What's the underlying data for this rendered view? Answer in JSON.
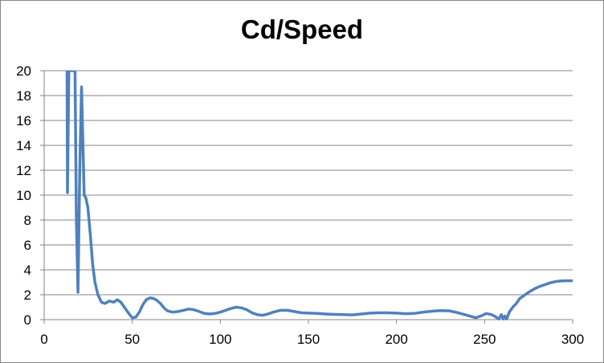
{
  "chart_data": {
    "type": "line",
    "title": "Cd/Speed",
    "xlabel": "",
    "ylabel": "",
    "xlim": [
      0,
      300
    ],
    "ylim": [
      0,
      20
    ],
    "x_ticks": [
      "0",
      "50",
      "100",
      "150",
      "200",
      "250",
      "300"
    ],
    "y_ticks": [
      "0",
      "2",
      "4",
      "6",
      "8",
      "10",
      "12",
      "14",
      "16",
      "18",
      "20"
    ],
    "grid": "horizontal",
    "legend": "none",
    "line_color": "#4f81bd",
    "series": [
      {
        "x": [
          13,
          13.2,
          14,
          17.5,
          18.3,
          19.2,
          20.2,
          21.2,
          22,
          22.7,
          23.6,
          24.8,
          26.2,
          27.5,
          28.8,
          30.5,
          32.5,
          34.5,
          37,
          39.5,
          41.5,
          43.5,
          45.5,
          48,
          50,
          52,
          54,
          56,
          58,
          60,
          62,
          64,
          66,
          68,
          70,
          73,
          76,
          79,
          82,
          85,
          88,
          91,
          94,
          97,
          100,
          103,
          106,
          109,
          112,
          115,
          118,
          121,
          124,
          127,
          130,
          134,
          138,
          142,
          146,
          150,
          155,
          160,
          165,
          170,
          175,
          180,
          185,
          190,
          195,
          200,
          205,
          210,
          215,
          220,
          225,
          230,
          235,
          240,
          245,
          248,
          251,
          254,
          256,
          258,
          259.5,
          260.5,
          261.5,
          262.5,
          264,
          266,
          268,
          270,
          272,
          275,
          278,
          281,
          284,
          287,
          290,
          293,
          296,
          300
        ],
        "values": [
          20,
          10.2,
          20,
          20,
          8,
          2.2,
          12,
          18.7,
          14,
          10,
          9.8,
          9,
          6.8,
          4.5,
          3,
          2,
          1.4,
          1.3,
          1.5,
          1.4,
          1.6,
          1.4,
          1,
          0.5,
          0.15,
          0.2,
          0.6,
          1.2,
          1.6,
          1.75,
          1.7,
          1.55,
          1.3,
          0.95,
          0.7,
          0.6,
          0.65,
          0.75,
          0.85,
          0.8,
          0.65,
          0.5,
          0.45,
          0.5,
          0.6,
          0.75,
          0.9,
          1,
          0.95,
          0.8,
          0.55,
          0.4,
          0.35,
          0.45,
          0.6,
          0.75,
          0.75,
          0.65,
          0.55,
          0.52,
          0.5,
          0.45,
          0.42,
          0.4,
          0.38,
          0.45,
          0.52,
          0.55,
          0.55,
          0.52,
          0.48,
          0.5,
          0.6,
          0.68,
          0.72,
          0.7,
          0.55,
          0.35,
          0.15,
          0.3,
          0.5,
          0.4,
          0.25,
          0.05,
          0.4,
          0.05,
          0.3,
          0.05,
          0.6,
          1,
          1.3,
          1.7,
          1.9,
          2.2,
          2.45,
          2.65,
          2.8,
          2.95,
          3.05,
          3.1,
          3.12,
          3.12
        ]
      }
    ]
  }
}
